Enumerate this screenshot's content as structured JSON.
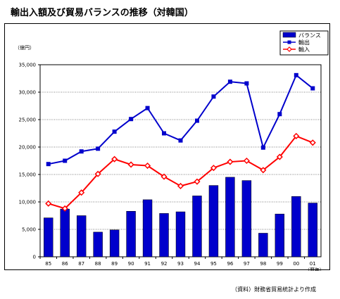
{
  "title": "輸出入額及び貿易バランスの推移（対韓国）",
  "source": "（資料）財務省貿易統計より作成",
  "chart_data": {
    "type": "bar",
    "categories": [
      "85",
      "86",
      "87",
      "88",
      "89",
      "90",
      "91",
      "92",
      "93",
      "94",
      "95",
      "96",
      "97",
      "98",
      "99",
      "00",
      "01"
    ],
    "y_unit_label": "（億円）",
    "x_unit_label": "（暦年）",
    "ylim": [
      0,
      35000
    ],
    "yticks": [
      0,
      5000,
      10000,
      15000,
      20000,
      25000,
      30000,
      35000
    ],
    "ytick_labels": [
      "0",
      "5,000",
      "10,000",
      "15,000",
      "20,000",
      "25,000",
      "30,000",
      "35,000"
    ],
    "grid": true,
    "legend_position": "top-right",
    "series": [
      {
        "name": "バランス",
        "type": "bar",
        "color": "#0000cc",
        "values": [
          7100,
          8700,
          7500,
          4500,
          4900,
          8300,
          10400,
          7900,
          8200,
          11100,
          13000,
          14500,
          13900,
          4300,
          7800,
          11000,
          9800
        ]
      },
      {
        "name": "輸出",
        "type": "line",
        "color": "#0000cc",
        "marker": "square",
        "values": [
          16900,
          17500,
          19200,
          19700,
          22800,
          25100,
          27100,
          22500,
          21200,
          24800,
          29200,
          31900,
          31600,
          19900,
          26000,
          33100,
          30700
        ]
      },
      {
        "name": "輸入",
        "type": "line",
        "color": "#ff0000",
        "marker": "diamond",
        "values": [
          9700,
          8800,
          11700,
          15100,
          17800,
          16800,
          16600,
          14600,
          12900,
          13700,
          16200,
          17300,
          17500,
          15800,
          18200,
          22000,
          20800
        ]
      }
    ]
  }
}
